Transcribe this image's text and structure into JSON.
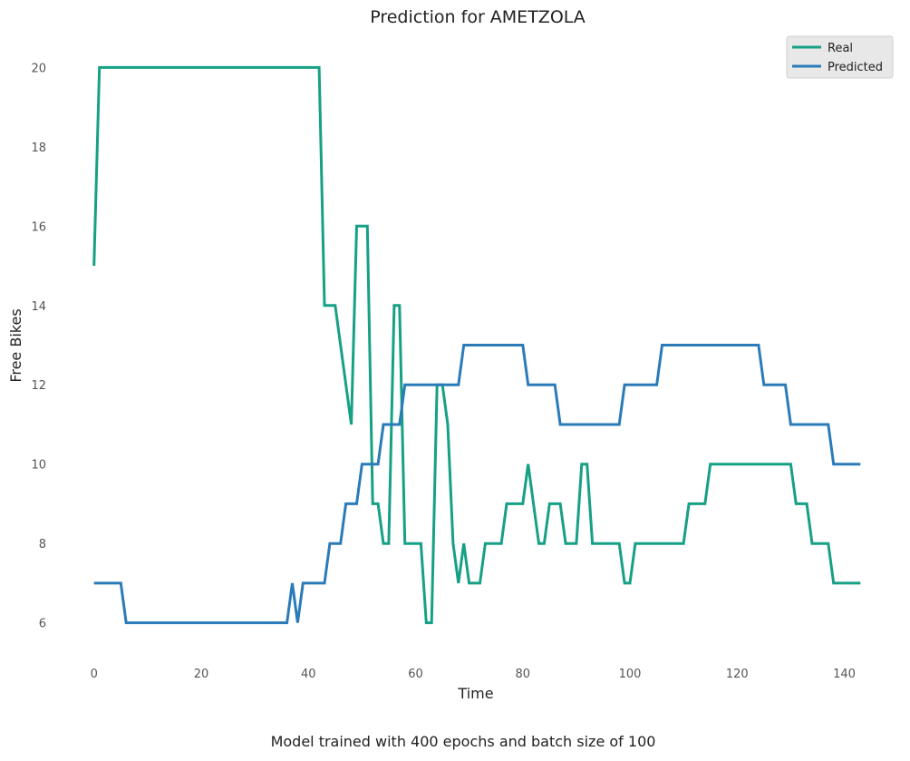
{
  "chart_data": {
    "type": "line",
    "title": "Prediction for AMETZOLA",
    "xlabel": "Time",
    "ylabel": "Free Bikes",
    "xlim": [
      -3,
      146
    ],
    "ylim": [
      5.1,
      20.9
    ],
    "xticks": [
      0,
      20,
      40,
      60,
      80,
      100,
      120,
      140
    ],
    "yticks": [
      6,
      8,
      10,
      12,
      14,
      16,
      18,
      20
    ],
    "grid": false,
    "legend_position": "top-right",
    "series": [
      {
        "name": "Real",
        "color": "#16a085",
        "points": [
          [
            0,
            15
          ],
          [
            1,
            20
          ],
          [
            42,
            20
          ],
          [
            43,
            14
          ],
          [
            45,
            14
          ],
          [
            48,
            11
          ],
          [
            49,
            16
          ],
          [
            51,
            16
          ],
          [
            52,
            9
          ],
          [
            53,
            9
          ],
          [
            54,
            8
          ],
          [
            55,
            8
          ],
          [
            56,
            14
          ],
          [
            57,
            14
          ],
          [
            58,
            8
          ],
          [
            61,
            8
          ],
          [
            62,
            6
          ],
          [
            63,
            6
          ],
          [
            64,
            12
          ],
          [
            65,
            12
          ],
          [
            66,
            11
          ],
          [
            67,
            8
          ],
          [
            68,
            7
          ],
          [
            69,
            8
          ],
          [
            70,
            7
          ],
          [
            72,
            7
          ],
          [
            73,
            8
          ],
          [
            76,
            8
          ],
          [
            77,
            9
          ],
          [
            80,
            9
          ],
          [
            81,
            10
          ],
          [
            83,
            8
          ],
          [
            84,
            8
          ],
          [
            85,
            9
          ],
          [
            87,
            9
          ],
          [
            88,
            8
          ],
          [
            90,
            8
          ],
          [
            91,
            10
          ],
          [
            92,
            10
          ],
          [
            93,
            8
          ],
          [
            98,
            8
          ],
          [
            99,
            7
          ],
          [
            100,
            7
          ],
          [
            101,
            8
          ],
          [
            110,
            8
          ],
          [
            111,
            9
          ],
          [
            114,
            9
          ],
          [
            115,
            10
          ],
          [
            130,
            10
          ],
          [
            131,
            9
          ],
          [
            133,
            9
          ],
          [
            134,
            8
          ],
          [
            137,
            8
          ],
          [
            138,
            7
          ],
          [
            143,
            7
          ]
        ]
      },
      {
        "name": "Predicted",
        "color": "#2b7bb9",
        "points": [
          [
            0,
            7
          ],
          [
            5,
            7
          ],
          [
            6,
            6
          ],
          [
            36,
            6
          ],
          [
            37,
            7
          ],
          [
            38,
            6
          ],
          [
            39,
            7
          ],
          [
            43,
            7
          ],
          [
            44,
            8
          ],
          [
            46,
            8
          ],
          [
            47,
            9
          ],
          [
            49,
            9
          ],
          [
            50,
            10
          ],
          [
            53,
            10
          ],
          [
            54,
            11
          ],
          [
            57,
            11
          ],
          [
            58,
            12
          ],
          [
            68,
            12
          ],
          [
            69,
            13
          ],
          [
            80,
            13
          ],
          [
            81,
            12
          ],
          [
            86,
            12
          ],
          [
            87,
            11
          ],
          [
            98,
            11
          ],
          [
            99,
            12
          ],
          [
            105,
            12
          ],
          [
            106,
            13
          ],
          [
            124,
            13
          ],
          [
            125,
            12
          ],
          [
            129,
            12
          ],
          [
            130,
            11
          ],
          [
            137,
            11
          ],
          [
            138,
            10
          ],
          [
            143,
            10
          ]
        ]
      }
    ]
  },
  "caption": "Model trained with 400 epochs and batch size of 100"
}
